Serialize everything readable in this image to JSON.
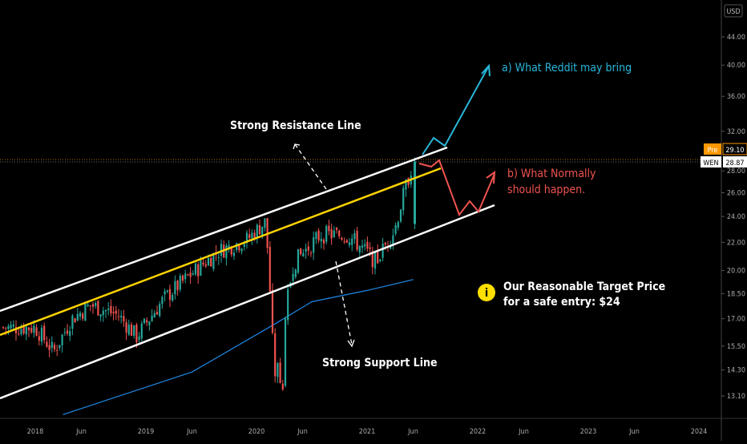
{
  "chart_data": {
    "type": "candlestick",
    "ticker": "WEN",
    "currency": "USD",
    "last_price": "28.87",
    "premarket": {
      "label": "Pre",
      "value": "29.10"
    },
    "scale": "log",
    "y_ticks": [
      "13.10",
      "14.30",
      "15.50",
      "17.00",
      "18.50",
      "20.00",
      "22.00",
      "24.00",
      "26.00",
      "28.00",
      "32.00",
      "36.00",
      "40.00",
      "44.00"
    ],
    "x_ticks": [
      "2018",
      "Jun",
      "2019",
      "Jun",
      "2020",
      "Jun",
      "2021",
      "Jun",
      "2022",
      "Jun",
      "2023",
      "Jun",
      "2024"
    ],
    "price_series": [
      {
        "date": "2018-01",
        "value": 16.5
      },
      {
        "date": "2018-03",
        "value": 15.2
      },
      {
        "date": "2018-05",
        "value": 17.0
      },
      {
        "date": "2018-07",
        "value": 17.8
      },
      {
        "date": "2018-10",
        "value": 17.2
      },
      {
        "date": "2018-12",
        "value": 16.0
      },
      {
        "date": "2019-03",
        "value": 18.2
      },
      {
        "date": "2019-06",
        "value": 19.8
      },
      {
        "date": "2019-09",
        "value": 21.4
      },
      {
        "date": "2019-12",
        "value": 22.2
      },
      {
        "date": "2020-02",
        "value": 23.6
      },
      {
        "date": "2020-03",
        "value": 13.0
      },
      {
        "date": "2020-05",
        "value": 20.5
      },
      {
        "date": "2020-08",
        "value": 22.6
      },
      {
        "date": "2020-11",
        "value": 22.5
      },
      {
        "date": "2021-02",
        "value": 20.6
      },
      {
        "date": "2021-04",
        "value": 23.0
      },
      {
        "date": "2021-06",
        "value": 28.9
      }
    ],
    "moving_average": [
      {
        "date": "2018-04",
        "value": 12.3
      },
      {
        "date": "2019-06",
        "value": 14.2
      },
      {
        "date": "2020-03",
        "value": 16.7
      },
      {
        "date": "2020-07",
        "value": 18.0
      },
      {
        "date": "2021-01",
        "value": 18.7
      },
      {
        "date": "2021-06",
        "value": 19.4
      }
    ],
    "annotations": {
      "reddit": "a) What Reddit may bring",
      "normal_line1": "b) What Normally",
      "normal_line2": "should happen.",
      "resistance": "Strong Resistance Line",
      "support": "Strong Support Line",
      "target_line1": "Our Reasonable Target Price",
      "target_line2": "for a safe entry: $24"
    },
    "colors": {
      "background": "#000000",
      "up": "#26a69a",
      "down": "#ef5350",
      "channel": "#ffffff",
      "midline": "#ffd400",
      "ma": "#1e88e5",
      "reddit": "#29b6d9",
      "normal": "#ef5350",
      "info_icon": "#ffe000",
      "pre_badge": "#ff9800"
    }
  }
}
